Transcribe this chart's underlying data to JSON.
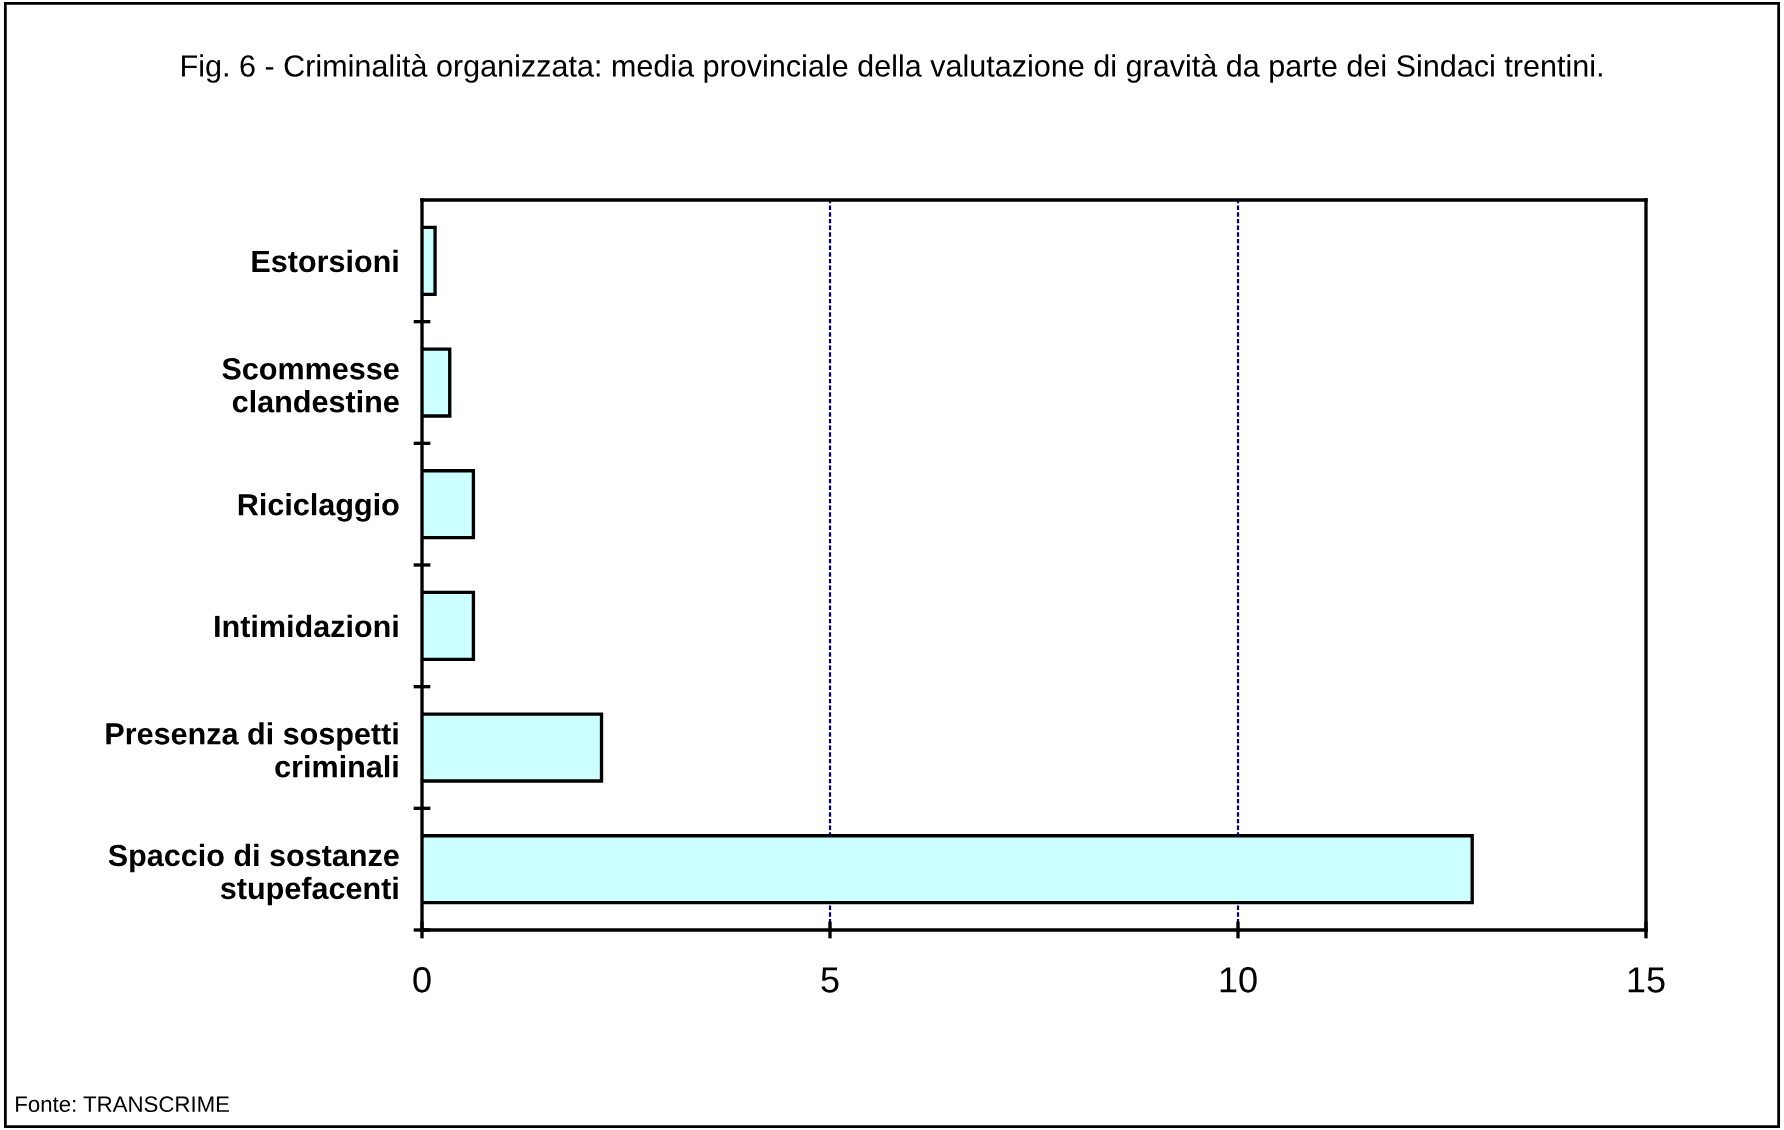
{
  "chart_data": {
    "type": "bar",
    "orientation": "horizontal",
    "title": "Fig. 6 - Criminalità organizzata: media provinciale della valutazione di gravità da parte dei Sindaci trentini.",
    "categories": [
      "Estorsioni",
      "Scommesse\nclandestine",
      "Riciclaggio",
      "Intimidazioni",
      "Presenza di sospetti\ncriminali",
      "Spaccio di sostanze\nstupefacenti"
    ],
    "values": [
      0.16,
      0.34,
      0.63,
      0.63,
      2.2,
      12.87
    ],
    "color": "#ccffff",
    "xlim": [
      0,
      15
    ],
    "xticks": [
      0,
      5,
      10,
      15
    ],
    "grid": "x",
    "annotations": [
      "Fonte: TRANSCRIME"
    ]
  }
}
